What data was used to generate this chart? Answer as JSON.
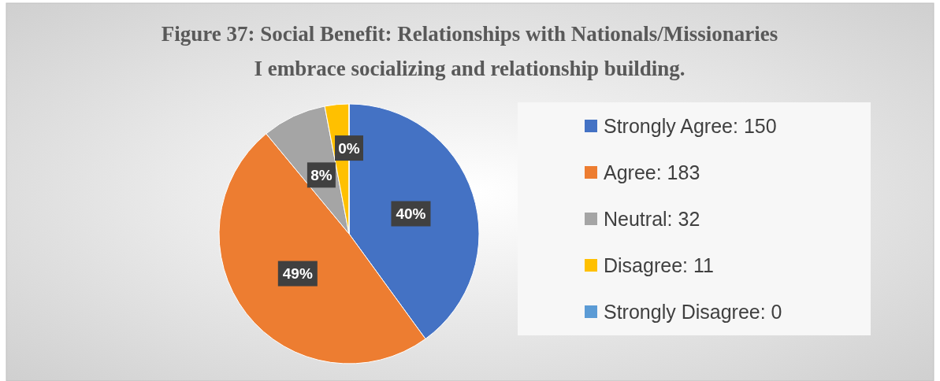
{
  "chart_data": {
    "type": "pie",
    "title": "Figure 37: Social Benefit: Relationships with Nationals/Missionaries",
    "subtitle": "I embrace socializing and relationship building.",
    "categories": [
      "Strongly Agree: 150",
      "Agree: 183",
      "Neutral: 32",
      "Disagree: 11",
      "Strongly Disagree: 0"
    ],
    "values": [
      40,
      49,
      8,
      3,
      0
    ],
    "colors": [
      "#4472c4",
      "#ed7d31",
      "#a5a5a5",
      "#ffc000",
      "#5b9bd5"
    ],
    "value_labels": [
      "40%",
      "49%",
      "8%",
      null,
      "0%"
    ],
    "legend": "right"
  }
}
